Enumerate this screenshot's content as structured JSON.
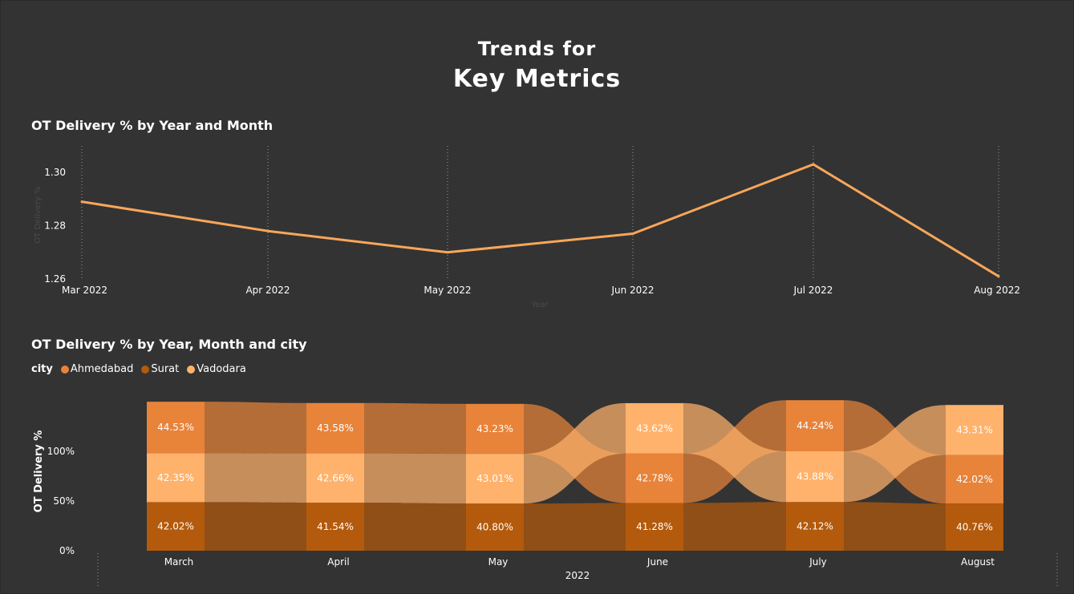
{
  "header": {
    "line1": "Trends for",
    "line2": "Key Metrics"
  },
  "colors": {
    "background": "#333333",
    "ahmedabad": "#E8833A",
    "surat": "#B35A0C",
    "vadodara": "#FFB26B",
    "line": "#F9A65A"
  },
  "charts": {
    "line": {
      "title": "OT Delivery % by Year and Month",
      "xlabel": "Year",
      "ylabel": "OT Delivery %"
    },
    "ribbon": {
      "title": "OT Delivery % by Year, Month and city",
      "legend_title": "city",
      "xlabel": "2022",
      "ylabel": "OT Delivery %"
    }
  },
  "chart_data": [
    {
      "type": "line",
      "title": "OT Delivery % by Year and Month",
      "xlabel": "Year",
      "ylabel": "OT Delivery %",
      "categories": [
        "Mar 2022",
        "Apr 2022",
        "May 2022",
        "Jun 2022",
        "Jul 2022",
        "Aug 2022"
      ],
      "values": [
        1.289,
        1.278,
        1.27,
        1.277,
        1.303,
        1.261
      ],
      "yticks": [
        "1.26",
        "1.28",
        "1.30"
      ],
      "ylim": [
        1.26,
        1.3
      ],
      "grid": "vertical-dotted"
    },
    {
      "type": "bar",
      "subtype": "ribbon-stacked",
      "title": "OT Delivery % by Year, Month and city",
      "xlabel": "2022",
      "ylabel": "OT Delivery %",
      "categories": [
        "March",
        "April",
        "May",
        "June",
        "July",
        "August"
      ],
      "legend": [
        "Ahmedabad",
        "Surat",
        "Vadodara"
      ],
      "legend_position": "top-left",
      "yticks": [
        "0%",
        "50%",
        "100%"
      ],
      "series": [
        {
          "name": "Ahmedabad",
          "values": [
            44.53,
            43.58,
            43.23,
            42.78,
            44.24,
            42.02
          ],
          "labels": [
            "44.53%",
            "43.58%",
            "43.23%",
            "42.78%",
            "44.24%",
            "42.02%"
          ]
        },
        {
          "name": "Surat",
          "values": [
            42.02,
            41.54,
            40.8,
            41.28,
            42.12,
            40.76
          ],
          "labels": [
            "42.02%",
            "41.54%",
            "40.80%",
            "41.28%",
            "42.12%",
            "40.76%"
          ]
        },
        {
          "name": "Vadodara",
          "values": [
            42.35,
            42.66,
            43.01,
            43.62,
            43.88,
            43.31
          ],
          "labels": [
            "42.35%",
            "42.66%",
            "43.01%",
            "43.62%",
            "43.88%",
            "43.31%"
          ]
        }
      ]
    }
  ]
}
